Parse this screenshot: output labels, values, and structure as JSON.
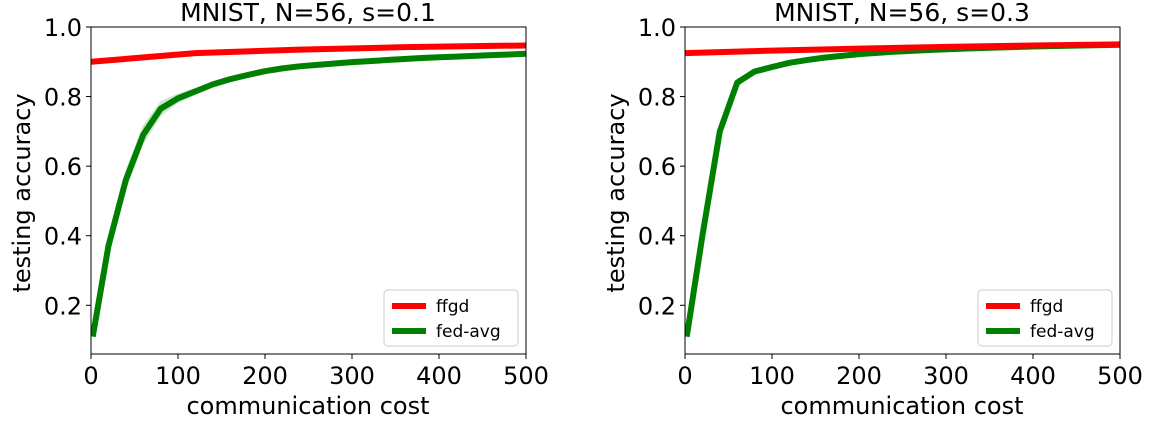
{
  "chart_data": [
    {
      "type": "line",
      "title": "MNIST, N=56, s=0.1",
      "xlabel": "communication cost",
      "ylabel": "testing accuracy",
      "xlim": [
        0,
        500
      ],
      "ylim": [
        0.06,
        1.0
      ],
      "xticks": [
        0,
        100,
        200,
        300,
        400,
        500
      ],
      "yticks": [
        0.2,
        0.4,
        0.6,
        0.8,
        1.0
      ],
      "grid": false,
      "legend_position": "bottom-right",
      "series": [
        {
          "name": "ffgd",
          "color": "#ff0000",
          "x": [
            0,
            120,
            240,
            360,
            500
          ],
          "y": [
            0.9,
            0.925,
            0.935,
            0.942,
            0.947
          ]
        },
        {
          "name": "fed-avg",
          "color": "#008000",
          "band_color": "#cfe6cf",
          "x": [
            2,
            20,
            40,
            60,
            80,
            100,
            120,
            140,
            160,
            180,
            200,
            220,
            240,
            260,
            280,
            300,
            320,
            340,
            360,
            380,
            400,
            420,
            440,
            460,
            480,
            500
          ],
          "y": [
            0.11,
            0.37,
            0.56,
            0.69,
            0.765,
            0.795,
            0.815,
            0.835,
            0.85,
            0.862,
            0.873,
            0.881,
            0.887,
            0.891,
            0.895,
            0.899,
            0.902,
            0.905,
            0.908,
            0.911,
            0.913,
            0.915,
            0.917,
            0.919,
            0.921,
            0.923
          ],
          "band": [
            0,
            0.02,
            0.03,
            0.028,
            0.022,
            0.014,
            0.01,
            0.007,
            0.005,
            0.004,
            0.003,
            0.003,
            0.002,
            0.002,
            0.002,
            0.002,
            0.002,
            0.002,
            0.002,
            0.002,
            0.002,
            0.002,
            0.002,
            0.002,
            0.002,
            0.002
          ]
        }
      ]
    },
    {
      "type": "line",
      "title": "MNIST, N=56, s=0.3",
      "xlabel": "communication cost",
      "ylabel": "testing accuracy",
      "xlim": [
        0,
        500
      ],
      "ylim": [
        0.06,
        1.0
      ],
      "xticks": [
        0,
        100,
        200,
        300,
        400,
        500
      ],
      "yticks": [
        0.2,
        0.4,
        0.6,
        0.8,
        1.0
      ],
      "grid": false,
      "legend_position": "bottom-right",
      "series": [
        {
          "name": "ffgd",
          "color": "#ff0000",
          "x": [
            0,
            100,
            200,
            300,
            400,
            500
          ],
          "y": [
            0.925,
            0.932,
            0.938,
            0.943,
            0.947,
            0.95
          ]
        },
        {
          "name": "fed-avg",
          "color": "#008000",
          "band_color": "#cfe6cf",
          "x": [
            2,
            20,
            40,
            60,
            80,
            100,
            120,
            140,
            160,
            180,
            200,
            240,
            280,
            320,
            360,
            400,
            440,
            480,
            500
          ],
          "y": [
            0.11,
            0.4,
            0.7,
            0.84,
            0.872,
            0.885,
            0.897,
            0.905,
            0.912,
            0.917,
            0.922,
            0.929,
            0.934,
            0.938,
            0.941,
            0.944,
            0.946,
            0.948,
            0.949
          ],
          "band": [
            0,
            0.015,
            0.025,
            0.012,
            0.006,
            0.004,
            0.003,
            0.002,
            0.002,
            0.002,
            0.002,
            0.002,
            0.002,
            0.002,
            0.002,
            0.002,
            0.002,
            0.002,
            0.002
          ]
        }
      ]
    }
  ]
}
